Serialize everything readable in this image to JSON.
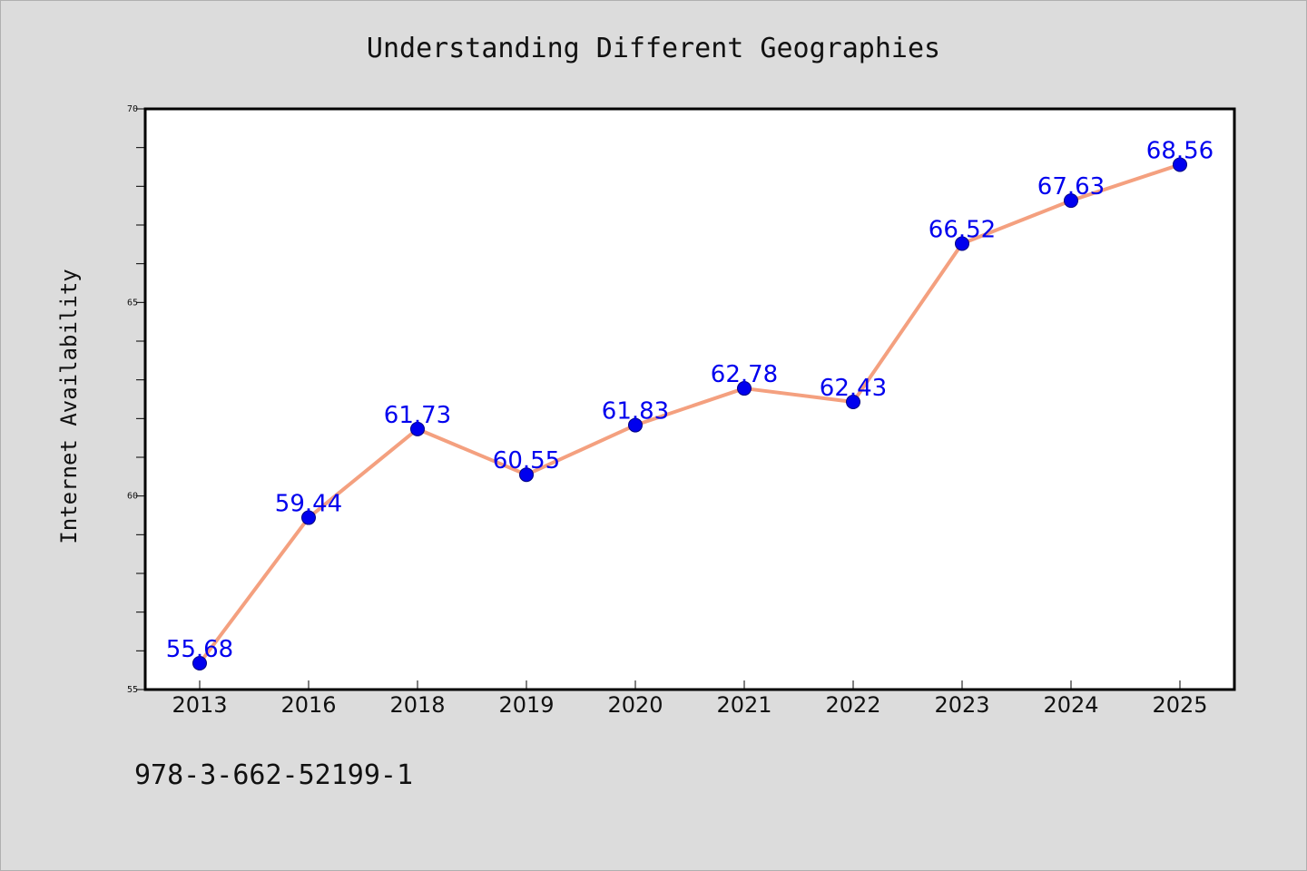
{
  "chart_data": {
    "type": "line",
    "title": "Understanding Different Geographies",
    "xlabel": "",
    "ylabel": "Internet Availability",
    "categories": [
      "2013",
      "2016",
      "2018",
      "2019",
      "2020",
      "2021",
      "2022",
      "2023",
      "2024",
      "2025"
    ],
    "series": [
      {
        "values": [
          55.68,
          59.44,
          61.73,
          60.55,
          61.83,
          62.78,
          62.43,
          66.52,
          67.63,
          68.56
        ],
        "labels": [
          "55.68",
          "59.44",
          "61.73",
          "60.55",
          "61.83",
          "62.78",
          "62.43",
          "66.52",
          "67.63",
          "68.56"
        ]
      }
    ],
    "ylim": [
      55,
      70
    ],
    "yticks": [
      "55",
      "60",
      "65",
      "70"
    ],
    "grid": false,
    "legend": "none",
    "colors": {
      "line": "#f4a07f",
      "marker": "#0000ee",
      "label": "#0000ee",
      "background": "#dcdcdc",
      "plot_background": "#ffffff"
    }
  },
  "footer": {
    "text": "978-3-662-52199-1"
  }
}
